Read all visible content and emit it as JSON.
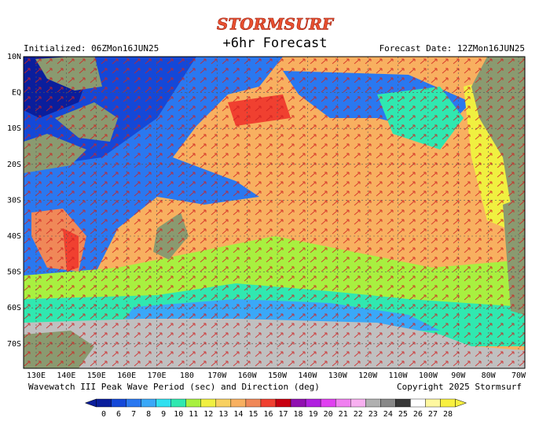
{
  "header": {
    "logo": "STORMSURF",
    "title": "+6hr Forecast",
    "initialized": "Initialized: 06ZMon16JUN25",
    "forecast_date": "Forecast Date: 12ZMon16JUN25"
  },
  "map": {
    "lat_labels": [
      "10N",
      "EQ",
      "10S",
      "20S",
      "30S",
      "40S",
      "50S",
      "60S",
      "70S"
    ],
    "lon_labels": [
      "130E",
      "140E",
      "150E",
      "160E",
      "170E",
      "180",
      "170W",
      "160W",
      "150W",
      "140W",
      "130W",
      "120W",
      "110W",
      "100W",
      "90W",
      "80W",
      "70W"
    ]
  },
  "footer": {
    "caption": "Wavewatch III Peak Wave Period (sec) and Direction (deg)",
    "copyright": "Copyright 2025 Stormsurf"
  },
  "legend": {
    "labels": [
      0,
      6,
      7,
      8,
      9,
      10,
      11,
      12,
      13,
      14,
      15,
      16,
      17,
      18,
      19,
      20,
      21,
      22,
      23,
      24,
      25,
      26,
      27,
      28
    ],
    "colors": [
      "#0a1e9c",
      "#1448d8",
      "#2a78f0",
      "#3aa8f8",
      "#30e0f0",
      "#30e8b0",
      "#a8f040",
      "#f0f040",
      "#f8d060",
      "#f8b060",
      "#f08858",
      "#f04030",
      "#c80010",
      "#9010b0",
      "#b020e0",
      "#e040f0",
      "#f080f0",
      "#f8b0f0",
      "#b0b0b0",
      "#888888",
      "#383838",
      "#ffffff",
      "#fff8a0",
      "#f8f040"
    ]
  }
}
